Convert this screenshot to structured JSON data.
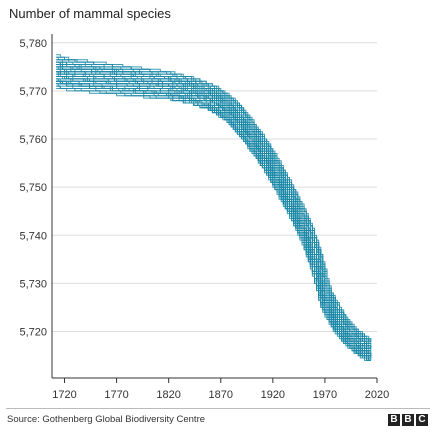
{
  "chart_data": {
    "type": "line",
    "title": "Number of mammal species",
    "xlabel": "",
    "ylabel": "",
    "xlim": [
      1708,
      2020
    ],
    "ylim": [
      5712,
      5781
    ],
    "x_ticks": [
      1720,
      1770,
      1820,
      1870,
      1920,
      1970,
      2020
    ],
    "y_ticks": [
      5720,
      5730,
      5740,
      5750,
      5760,
      5770,
      5780
    ],
    "y_tick_labels": [
      "5,720",
      "5,730",
      "5,740",
      "5,750",
      "5,760",
      "5,770",
      "5,780"
    ],
    "grid": "horizontal",
    "legend": "none",
    "series_color": "#1d8aa8",
    "series_count": 50,
    "central_trend": {
      "x": [
        1712,
        1720,
        1740,
        1760,
        1780,
        1800,
        1820,
        1840,
        1860,
        1870,
        1880,
        1890,
        1900,
        1910,
        1920,
        1930,
        1940,
        1950,
        1960,
        1965,
        1970,
        1980,
        1990,
        2000,
        2010,
        2015
      ],
      "y": [
        5774,
        5773.5,
        5773,
        5772.5,
        5772,
        5771.5,
        5771,
        5770,
        5768.5,
        5767,
        5765.5,
        5763,
        5760,
        5757,
        5753.5,
        5749.5,
        5745.5,
        5741,
        5735,
        5731,
        5726.5,
        5722.5,
        5719.5,
        5717.5,
        5716,
        5715.5
      ]
    },
    "spread_start": 3,
    "spread_end": 2
  },
  "source": "Source: Gothenberg Global Biodiversity Centre",
  "logo_letters": [
    "B",
    "B",
    "C"
  ]
}
